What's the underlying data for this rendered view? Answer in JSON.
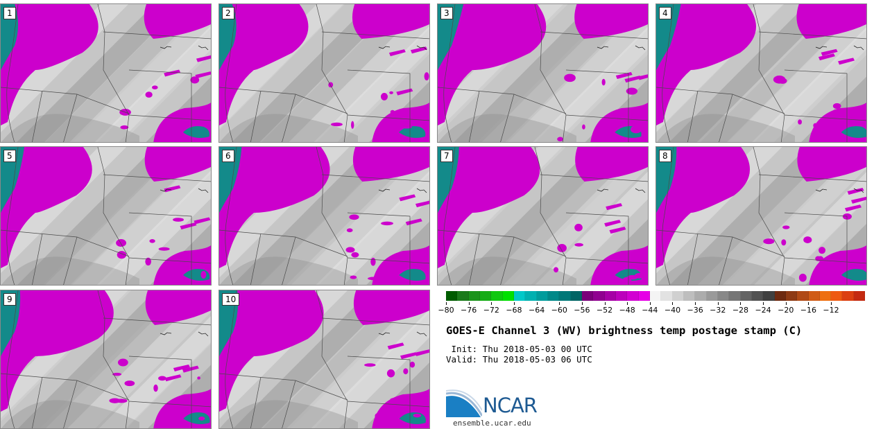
{
  "panels": [
    {
      "label": "1"
    },
    {
      "label": "2"
    },
    {
      "label": "3"
    },
    {
      "label": "4"
    },
    {
      "label": "5"
    },
    {
      "label": "6"
    },
    {
      "label": "7"
    },
    {
      "label": "8"
    },
    {
      "label": "9"
    },
    {
      "label": "10"
    }
  ],
  "colorbar": {
    "min": -80,
    "max": -10,
    "step": 2,
    "colors": [
      "#005c00",
      "#1a7a1a",
      "#1b931b",
      "#16ac16",
      "#10c810",
      "#00e000",
      "#00c8c8",
      "#00b0b0",
      "#009c9c",
      "#008888",
      "#007878",
      "#006464",
      "#7a007a",
      "#900090",
      "#a600a6",
      "#bc00bc",
      "#d200d2",
      "#e600e6",
      "#f4f4f4",
      "#e2e2e2",
      "#d0d0d0",
      "#bebebe",
      "#acacac",
      "#9a9a9a",
      "#888888",
      "#767676",
      "#646464",
      "#525252",
      "#404040",
      "#6e2a10",
      "#8e3a14",
      "#b04a16",
      "#d05c16",
      "#ee7010",
      "#ee5a10",
      "#dc4010",
      "#c42a10"
    ],
    "tick_labels": [
      "-80",
      "-76",
      "-72",
      "-68",
      "-64",
      "-60",
      "-56",
      "-52",
      "-48",
      "-44",
      "-40",
      "-36",
      "-32",
      "-28",
      "-24",
      "-20",
      "-16",
      "-12"
    ]
  },
  "title": "GOES-E Channel 3 (WV) brightness temp postage stamp (C)",
  "init": " Init: Thu 2018-05-03 00 UTC",
  "valid": "Valid: Thu 2018-05-03 06 UTC",
  "logo": {
    "text": "NCAR",
    "url": "ensemble.ucar.edu"
  },
  "colors": {
    "moist": "#cc00cc",
    "deep": "#138a8a",
    "dry_light": "#e8e8e8",
    "dry_mid": "#c6c6c6",
    "dry_dark": "#9a9a9a"
  }
}
